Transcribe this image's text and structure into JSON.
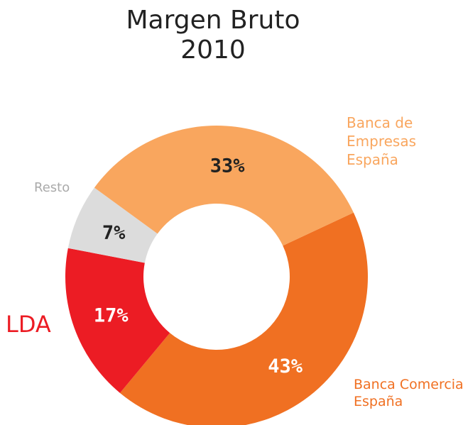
{
  "chart_data": {
    "type": "donut",
    "title": "Margen Bruto",
    "subtitle": "2010",
    "categories": [
      "Banca Comercial\nEspaña",
      "LDA",
      "Resto",
      "Banca de\nEmpresas\nEspaña"
    ],
    "values": [
      43,
      17,
      7,
      33
    ],
    "value_labels": [
      "43%",
      "17%",
      "7%",
      "33%"
    ],
    "colors": [
      "#f07022",
      "#ec1c24",
      "#dcdcdc",
      "#f9a65e"
    ]
  }
}
